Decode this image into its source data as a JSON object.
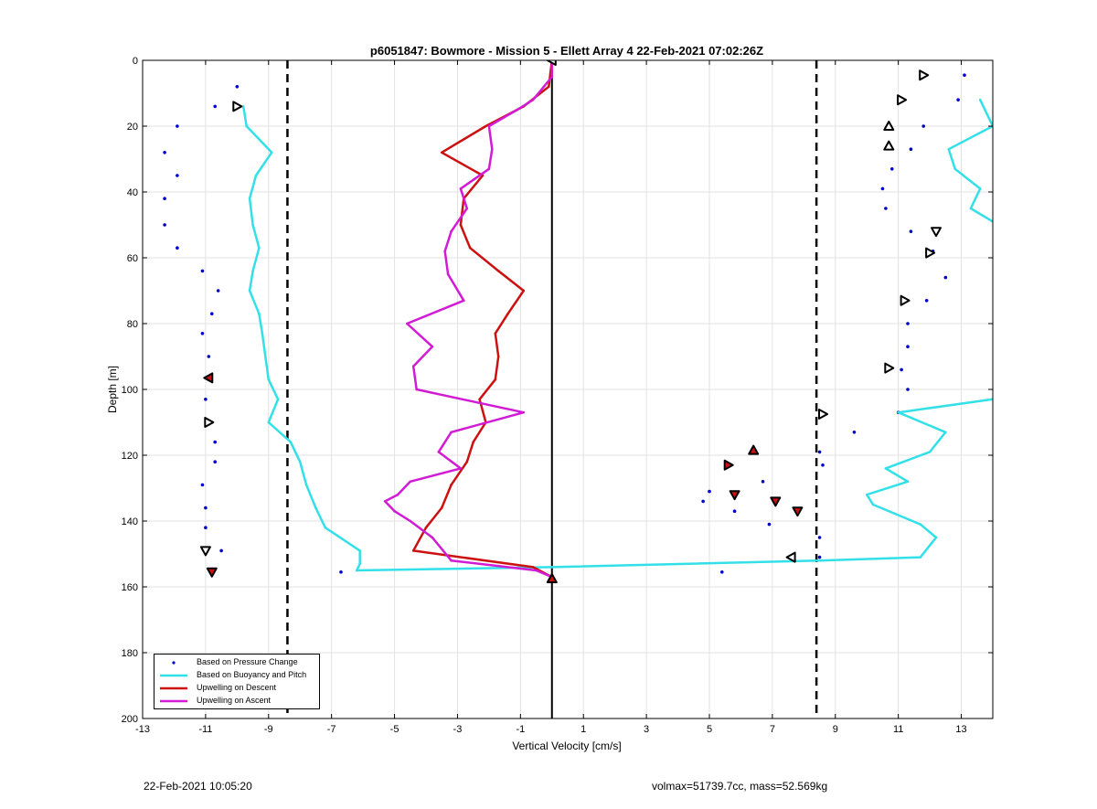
{
  "footer": {
    "timestamp": "22-Feb-2021 10:05:20",
    "stats": "volmax=51739.7cc, mass=52.569kg"
  },
  "legend": {
    "entries": [
      {
        "label": "Based on Pressure Change"
      },
      {
        "label": "Based on Buoyancy and Pitch"
      },
      {
        "label": "Upwelling on Descent"
      },
      {
        "label": "Upwelling on Ascent"
      }
    ]
  },
  "colors": {
    "pressure": "#0000cc",
    "buoyancy": "#33e0e8",
    "descent": "#cc1111",
    "ascent": "#d11bd4",
    "reference": "#000000",
    "grid": "#e2e2e2"
  },
  "chart_data": {
    "type": "line",
    "title": "p6051847: Bowmore - Mission 5 - Ellett Array 4 22-Feb-2021 07:02:26Z",
    "xlabel": "Vertical Velocity [cm/s]",
    "ylabel": "Depth [m]",
    "xlim": [
      -13,
      14
    ],
    "ylim": [
      0,
      200
    ],
    "y_reversed": true,
    "xticks": [
      -13,
      -11,
      -9,
      -7,
      -5,
      -3,
      -1,
      1,
      3,
      5,
      7,
      9,
      11,
      13
    ],
    "yticks": [
      0,
      20,
      40,
      60,
      80,
      100,
      120,
      140,
      160,
      180,
      200
    ],
    "grid": true,
    "legend_location": "bottom-left",
    "reference_lines": [
      {
        "x": 0,
        "style": "solid"
      },
      {
        "x": -8.4,
        "style": "dashed"
      },
      {
        "x": 8.4,
        "style": "dashed"
      }
    ],
    "series": [
      {
        "name": "Based on Pressure Change",
        "kind": "scatter",
        "points": [
          [
            -10.0,
            8
          ],
          [
            -10.7,
            14
          ],
          [
            -11.9,
            20
          ],
          [
            -12.3,
            28
          ],
          [
            -11.9,
            35
          ],
          [
            -12.3,
            42
          ],
          [
            -12.3,
            50
          ],
          [
            -11.9,
            57
          ],
          [
            -11.1,
            64
          ],
          [
            -10.6,
            70
          ],
          [
            -10.8,
            77
          ],
          [
            -11.1,
            83
          ],
          [
            -10.9,
            90
          ],
          [
            -10.9,
            97
          ],
          [
            -11.0,
            103
          ],
          [
            -10.8,
            110
          ],
          [
            -10.7,
            116
          ],
          [
            -10.7,
            122
          ],
          [
            -11.1,
            129
          ],
          [
            -11.0,
            136
          ],
          [
            -11.0,
            142
          ],
          [
            -10.5,
            149
          ],
          [
            -10.8,
            155
          ],
          [
            -6.7,
            155.5
          ],
          [
            13.1,
            4.5
          ],
          [
            12.9,
            12
          ],
          [
            11.8,
            20
          ],
          [
            11.4,
            27
          ],
          [
            10.8,
            33
          ],
          [
            10.5,
            39
          ],
          [
            10.6,
            45
          ],
          [
            11.4,
            52
          ],
          [
            12.1,
            58
          ],
          [
            12.5,
            66
          ],
          [
            11.9,
            73
          ],
          [
            11.3,
            80
          ],
          [
            11.3,
            87
          ],
          [
            11.1,
            94
          ],
          [
            11.3,
            100
          ],
          [
            11.0,
            107
          ],
          [
            9.6,
            113
          ],
          [
            8.5,
            119
          ],
          [
            8.6,
            123
          ],
          [
            6.7,
            128
          ],
          [
            5.0,
            131
          ],
          [
            4.8,
            134
          ],
          [
            5.8,
            137
          ],
          [
            6.9,
            141
          ],
          [
            8.5,
            145
          ],
          [
            8.5,
            151
          ],
          [
            5.4,
            155.5
          ]
        ]
      },
      {
        "name": "Based on Buoyancy and Pitch",
        "kind": "line",
        "segments": [
          [
            [
              -9.8,
              14
            ],
            [
              -9.7,
              20
            ],
            [
              -8.9,
              28
            ],
            [
              -9.4,
              35
            ],
            [
              -9.6,
              42
            ],
            [
              -9.5,
              50
            ],
            [
              -9.3,
              57
            ],
            [
              -9.5,
              64
            ],
            [
              -9.6,
              70
            ],
            [
              -9.3,
              77
            ],
            [
              -9.2,
              83
            ],
            [
              -9.1,
              90
            ],
            [
              -9.0,
              97
            ],
            [
              -8.7,
              103
            ],
            [
              -9.0,
              110
            ],
            [
              -8.3,
              116
            ],
            [
              -8.0,
              122
            ],
            [
              -7.8,
              129
            ],
            [
              -7.5,
              136
            ],
            [
              -7.2,
              142
            ],
            [
              -6.1,
              149
            ],
            [
              -6.1,
              153
            ],
            [
              -6.2,
              155
            ],
            [
              0.0,
              154
            ],
            [
              8.5,
              152
            ],
            [
              11.7,
              151
            ],
            [
              12.2,
              145
            ],
            [
              11.7,
              141
            ],
            [
              10.2,
              135
            ],
            [
              10.0,
              132
            ],
            [
              11.3,
              128
            ],
            [
              10.6,
              124
            ],
            [
              12.0,
              119
            ],
            [
              12.5,
              113
            ],
            [
              11.0,
              107
            ],
            [
              14.0,
              103
            ]
          ],
          [
            [
              13.6,
              12
            ],
            [
              14.0,
              20
            ],
            [
              12.6,
              27
            ],
            [
              12.8,
              33
            ],
            [
              13.6,
              39
            ],
            [
              13.3,
              45
            ],
            [
              14.0,
              49
            ]
          ]
        ]
      },
      {
        "name": "Upwelling on Descent",
        "kind": "line",
        "points": [
          [
            0.0,
            0
          ],
          [
            -0.1,
            8
          ],
          [
            -0.9,
            14
          ],
          [
            -2.1,
            20
          ],
          [
            -3.5,
            28
          ],
          [
            -2.2,
            35
          ],
          [
            -2.8,
            42
          ],
          [
            -2.9,
            50
          ],
          [
            -2.6,
            57
          ],
          [
            -1.7,
            64
          ],
          [
            -0.9,
            70
          ],
          [
            -1.4,
            77
          ],
          [
            -1.8,
            83
          ],
          [
            -1.7,
            90
          ],
          [
            -1.8,
            97
          ],
          [
            -2.3,
            103
          ],
          [
            -2.1,
            110
          ],
          [
            -2.5,
            116
          ],
          [
            -2.7,
            122
          ],
          [
            -3.2,
            129
          ],
          [
            -3.5,
            136
          ],
          [
            -4.0,
            142
          ],
          [
            -4.4,
            149
          ],
          [
            -0.6,
            154
          ],
          [
            0.0,
            157
          ]
        ]
      },
      {
        "name": "Upwelling on Ascent",
        "kind": "line",
        "points": [
          [
            0.0,
            0
          ],
          [
            0.0,
            5
          ],
          [
            -0.6,
            12
          ],
          [
            -1.1,
            15
          ],
          [
            -2.0,
            20
          ],
          [
            -1.9,
            27
          ],
          [
            -2.0,
            33
          ],
          [
            -2.9,
            39
          ],
          [
            -2.7,
            45
          ],
          [
            -3.2,
            52
          ],
          [
            -3.4,
            58
          ],
          [
            -3.3,
            65
          ],
          [
            -2.8,
            73
          ],
          [
            -4.6,
            80
          ],
          [
            -3.8,
            87
          ],
          [
            -4.4,
            93
          ],
          [
            -4.3,
            100
          ],
          [
            -0.9,
            107
          ],
          [
            -3.2,
            113
          ],
          [
            -3.6,
            119
          ],
          [
            -2.9,
            124
          ],
          [
            -4.5,
            128
          ],
          [
            -4.9,
            132
          ],
          [
            -5.3,
            134
          ],
          [
            -5.0,
            137
          ],
          [
            -4.5,
            140
          ],
          [
            -3.8,
            145
          ],
          [
            -3.2,
            152
          ],
          [
            -0.5,
            155
          ],
          [
            0.0,
            157
          ]
        ]
      }
    ],
    "triangle_markers": [
      {
        "x": 0.0,
        "y": 0,
        "dir": "left",
        "filled": false
      },
      {
        "x": 0.0,
        "y": 157.5,
        "dir": "up",
        "filled": true
      },
      {
        "x": -10.0,
        "y": 14,
        "dir": "right",
        "filled": false
      },
      {
        "x": -10.9,
        "y": 96.5,
        "dir": "left",
        "filled": true
      },
      {
        "x": -10.9,
        "y": 110,
        "dir": "right",
        "filled": false
      },
      {
        "x": -11.0,
        "y": 149,
        "dir": "down",
        "filled": false
      },
      {
        "x": -10.8,
        "y": 155.5,
        "dir": "down",
        "filled": true
      },
      {
        "x": 11.8,
        "y": 4.5,
        "dir": "right",
        "filled": false
      },
      {
        "x": 11.1,
        "y": 12,
        "dir": "right",
        "filled": false
      },
      {
        "x": 10.7,
        "y": 20,
        "dir": "up",
        "filled": false
      },
      {
        "x": 10.7,
        "y": 26,
        "dir": "up",
        "filled": false
      },
      {
        "x": 12.2,
        "y": 52,
        "dir": "down",
        "filled": false
      },
      {
        "x": 12.0,
        "y": 58.5,
        "dir": "right",
        "filled": false
      },
      {
        "x": 11.2,
        "y": 73,
        "dir": "right",
        "filled": false
      },
      {
        "x": 10.7,
        "y": 93.5,
        "dir": "right",
        "filled": false
      },
      {
        "x": 8.6,
        "y": 107.5,
        "dir": "right",
        "filled": false
      },
      {
        "x": 7.6,
        "y": 151,
        "dir": "left",
        "filled": false
      },
      {
        "x": 6.4,
        "y": 118.5,
        "dir": "up",
        "filled": true
      },
      {
        "x": 5.6,
        "y": 123,
        "dir": "right",
        "filled": true
      },
      {
        "x": 5.8,
        "y": 132,
        "dir": "down",
        "filled": true
      },
      {
        "x": 7.1,
        "y": 134,
        "dir": "down",
        "filled": true
      },
      {
        "x": 7.8,
        "y": 137,
        "dir": "down",
        "filled": true
      }
    ]
  }
}
